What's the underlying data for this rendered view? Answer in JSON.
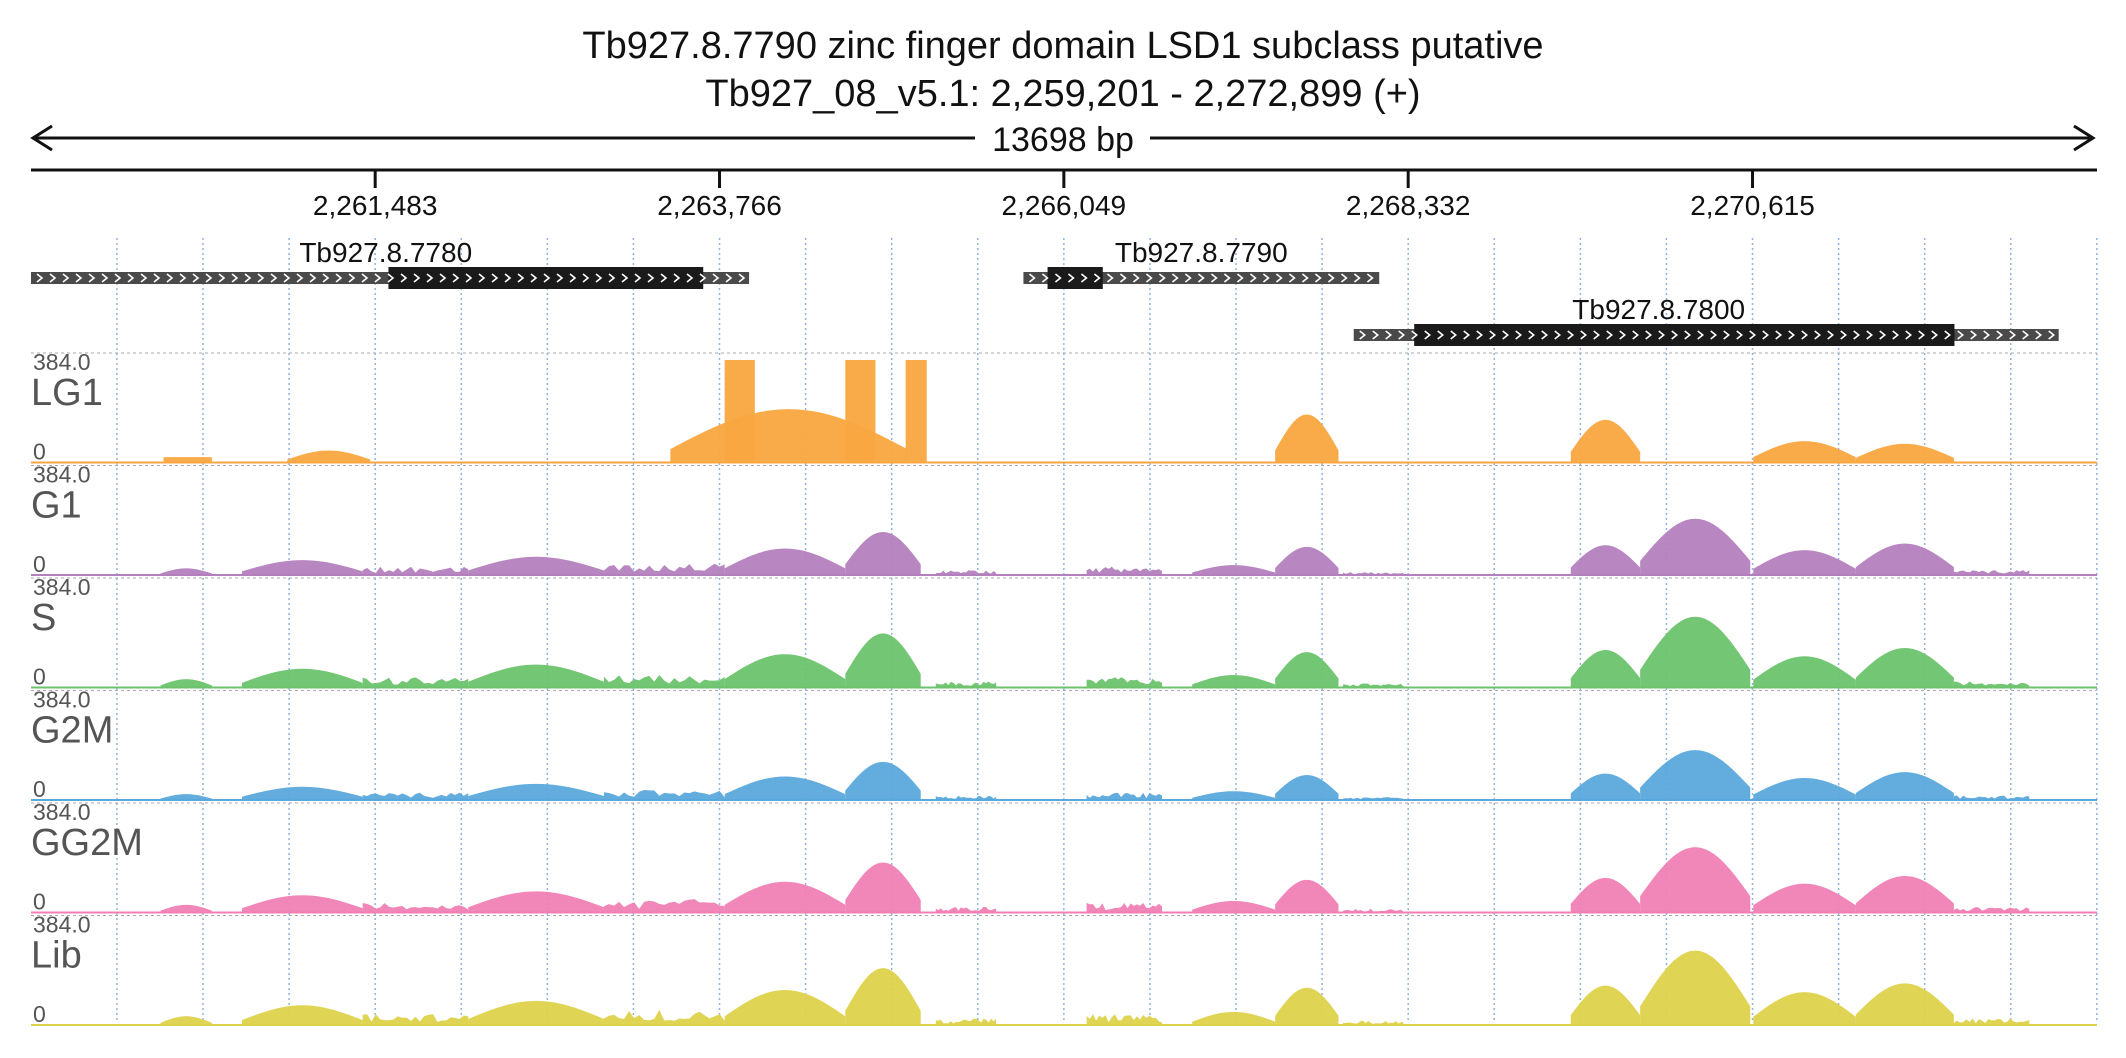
{
  "chart_data": {
    "type": "area",
    "title": "Tb927.8.7790  zinc finger domain  LSD1 subclass  putative",
    "subtitle": "Tb927_08_v5.1: 2,259,201 - 2,272,899 (+)",
    "span_label": "13698 bp",
    "region": {
      "start": 2259201,
      "end": 2272899
    },
    "ticks": [
      2261483,
      2263766,
      2266049,
      2268332,
      2270615
    ],
    "tick_labels": [
      "2,261,483",
      "2,263,766",
      "2,266,049",
      "2,268,332",
      "2,270,615"
    ],
    "genes": [
      {
        "name": "Tb927.8.7780",
        "start": 2259201,
        "end": 2263962,
        "cds_start": 2261571,
        "cds_end": 2263658,
        "row": 0,
        "label_at": 2261553
      },
      {
        "name": "Tb927.8.7790",
        "start": 2265781,
        "end": 2268140,
        "cds_start": 2265941,
        "cds_end": 2266307,
        "row": 0,
        "label_at": 2266960
      },
      {
        "name": "Tb927.8.7800",
        "start": 2267971,
        "end": 2272645,
        "cds_start": 2268372,
        "cds_end": 2271954,
        "row": 1,
        "label_at": 2269993
      }
    ],
    "ylim": [
      0,
      384
    ],
    "ymax_label": "384.0",
    "ymin_label": "0",
    "grid": true,
    "tracks": [
      {
        "name": "LG1",
        "color": "#f9a640",
        "scale": 1.0,
        "profile": "lg1"
      },
      {
        "name": "G1",
        "color": "#b47fbd",
        "scale": 0.62,
        "profile": "full"
      },
      {
        "name": "S",
        "color": "#6cc36c",
        "scale": 0.78,
        "profile": "full"
      },
      {
        "name": "G2M",
        "color": "#5aa8dc",
        "scale": 0.55,
        "profile": "full"
      },
      {
        "name": "GG2M",
        "color": "#f07fb4",
        "scale": 0.72,
        "profile": "full"
      },
      {
        "name": "Lib",
        "color": "#ddd24a",
        "scale": 0.82,
        "profile": "full"
      }
    ],
    "segments": {
      "lg1": [
        {
          "start": 2260080,
          "end": 2260400,
          "peak": 20,
          "shape": "flat"
        },
        {
          "start": 2260900,
          "end": 2261450,
          "peak": 45,
          "shape": "hump"
        },
        {
          "start": 2263440,
          "end": 2265010,
          "peak": 200,
          "shape": "hump"
        },
        {
          "start": 2263800,
          "end": 2264000,
          "peak": 384,
          "shape": "flat"
        },
        {
          "start": 2264600,
          "end": 2264800,
          "peak": 384,
          "shape": "flat"
        },
        {
          "start": 2265000,
          "end": 2265140,
          "peak": 384,
          "shape": "flat"
        },
        {
          "start": 2267450,
          "end": 2267870,
          "peak": 180,
          "shape": "hump"
        },
        {
          "start": 2269410,
          "end": 2269870,
          "peak": 160,
          "shape": "hump"
        },
        {
          "start": 2270620,
          "end": 2271300,
          "peak": 80,
          "shape": "hump"
        },
        {
          "start": 2271300,
          "end": 2271950,
          "peak": 70,
          "shape": "hump"
        }
      ],
      "full": [
        {
          "start": 2260060,
          "end": 2260400,
          "peak": 40,
          "shape": "hump"
        },
        {
          "start": 2260600,
          "end": 2261400,
          "peak": 90,
          "shape": "hump"
        },
        {
          "start": 2261400,
          "end": 2262100,
          "peak": 50,
          "shape": "noise"
        },
        {
          "start": 2262100,
          "end": 2263000,
          "peak": 110,
          "shape": "hump"
        },
        {
          "start": 2263000,
          "end": 2263800,
          "peak": 70,
          "shape": "noise"
        },
        {
          "start": 2263800,
          "end": 2264600,
          "peak": 160,
          "shape": "hump"
        },
        {
          "start": 2264600,
          "end": 2265100,
          "peak": 260,
          "shape": "hump"
        },
        {
          "start": 2265200,
          "end": 2265600,
          "peak": 30,
          "shape": "noise"
        },
        {
          "start": 2266200,
          "end": 2266700,
          "peak": 50,
          "shape": "noise"
        },
        {
          "start": 2266900,
          "end": 2267450,
          "peak": 60,
          "shape": "hump"
        },
        {
          "start": 2267450,
          "end": 2267870,
          "peak": 170,
          "shape": "hump"
        },
        {
          "start": 2267900,
          "end": 2268300,
          "peak": 20,
          "shape": "noise"
        },
        {
          "start": 2269410,
          "end": 2269870,
          "peak": 180,
          "shape": "hump"
        },
        {
          "start": 2269870,
          "end": 2270600,
          "peak": 340,
          "shape": "hump"
        },
        {
          "start": 2270620,
          "end": 2271300,
          "peak": 150,
          "shape": "hump"
        },
        {
          "start": 2271300,
          "end": 2271950,
          "peak": 190,
          "shape": "hump"
        },
        {
          "start": 2271950,
          "end": 2272450,
          "peak": 30,
          "shape": "noise"
        }
      ]
    }
  }
}
